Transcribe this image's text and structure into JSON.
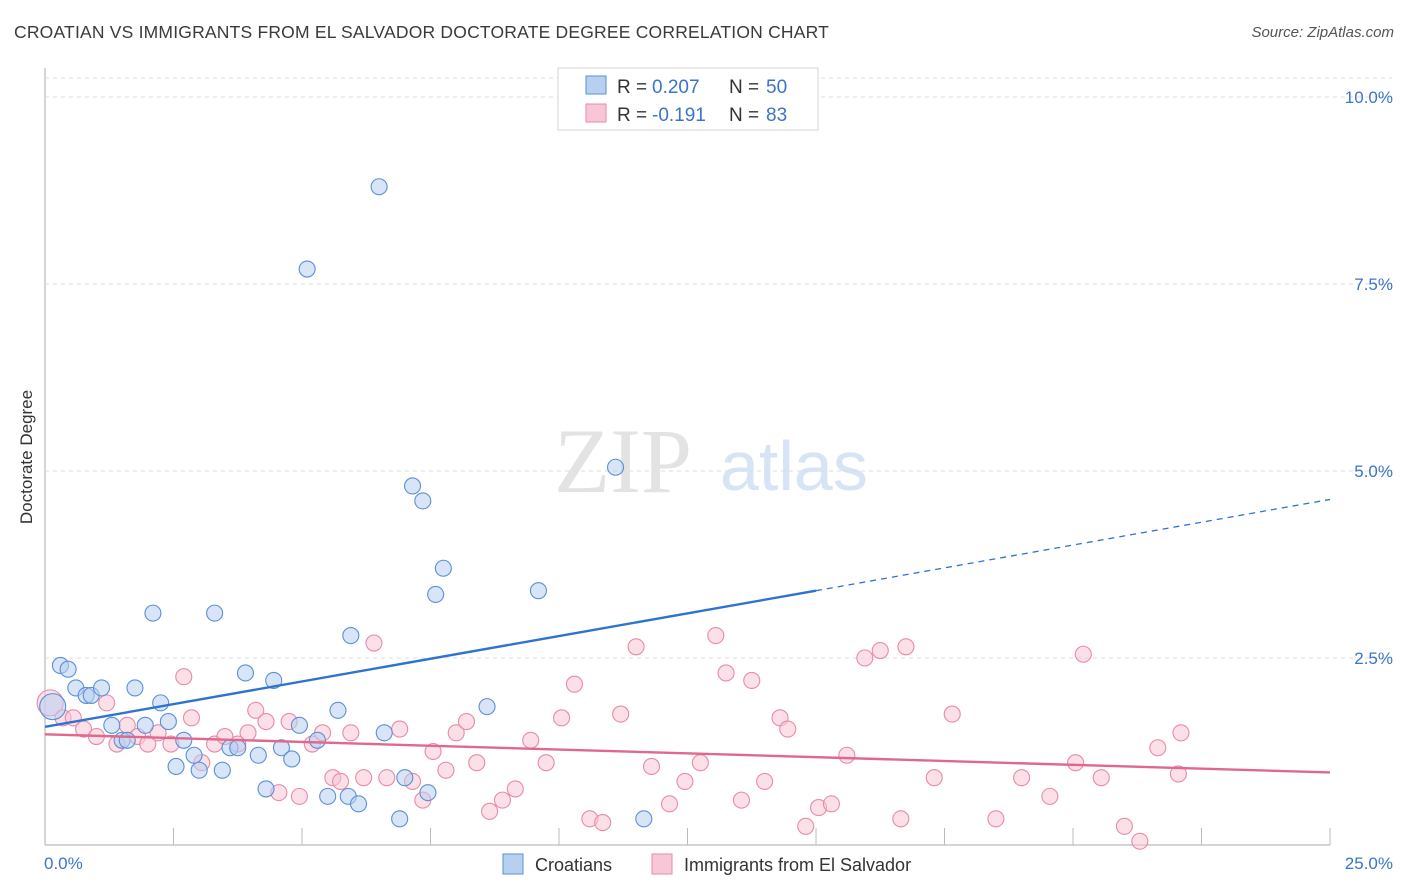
{
  "header": {
    "title": "CROATIAN VS IMMIGRANTS FROM EL SALVADOR DOCTORATE DEGREE CORRELATION CHART",
    "source": "Source: ZipAtlas.com"
  },
  "watermark": {
    "zip": "ZIP",
    "atlas": "atlas"
  },
  "legend_stats": [
    {
      "r_label": "R =",
      "r_value": "0.207",
      "n_label": "N =",
      "n_value": "50"
    },
    {
      "r_label": "R =",
      "r_value": "-0.191",
      "n_label": "N =",
      "n_value": "83"
    }
  ],
  "colors": {
    "blue_fill": "#b8d0f0",
    "blue_stroke": "#5b8fd6",
    "blue_line": "#2f73d0",
    "pink_fill": "#f8c6d6",
    "pink_stroke": "#e88aa8",
    "pink_line": "#e0688f",
    "value_text": "#3b74c9",
    "grid": "#dcdcdc"
  },
  "chart_data": {
    "type": "scatter",
    "title": "CROATIAN VS IMMIGRANTS FROM EL SALVADOR DOCTORATE DEGREE CORRELATION CHART",
    "xlabel": "",
    "ylabel": "Doctorate Degree",
    "xlim": [
      0,
      25
    ],
    "ylim": [
      0,
      10.5
    ],
    "x_tick_labels": [
      "0.0%",
      "25.0%"
    ],
    "y_ticks": [
      2.5,
      5.0,
      7.5,
      10.0
    ],
    "y_tick_labels": [
      "2.5%",
      "5.0%",
      "7.5%",
      "10.0%"
    ],
    "grid": true,
    "legend_position": "bottom",
    "series": [
      {
        "name": "Croatians",
        "r": 0.207,
        "n": 50,
        "trend": {
          "x_start": 0,
          "y_start": 1.58,
          "x_solid_end": 15,
          "y_solid_end": 3.4,
          "x_end": 25,
          "y_end": 4.62
        },
        "points": [
          [
            0.15,
            1.85
          ],
          [
            0.3,
            2.4
          ],
          [
            0.45,
            2.35
          ],
          [
            0.6,
            2.1
          ],
          [
            0.8,
            2.0
          ],
          [
            0.9,
            2.0
          ],
          [
            1.1,
            2.1
          ],
          [
            1.3,
            1.6
          ],
          [
            1.5,
            1.4
          ],
          [
            1.6,
            1.4
          ],
          [
            1.75,
            2.1
          ],
          [
            1.95,
            1.6
          ],
          [
            2.1,
            3.1
          ],
          [
            2.25,
            1.9
          ],
          [
            2.4,
            1.65
          ],
          [
            2.55,
            1.05
          ],
          [
            2.7,
            1.4
          ],
          [
            2.9,
            1.2
          ],
          [
            3.0,
            1.0
          ],
          [
            3.3,
            3.1
          ],
          [
            3.45,
            1.0
          ],
          [
            3.6,
            1.3
          ],
          [
            3.75,
            1.3
          ],
          [
            3.9,
            2.3
          ],
          [
            4.15,
            1.2
          ],
          [
            4.3,
            0.75
          ],
          [
            4.45,
            2.2
          ],
          [
            4.6,
            1.3
          ],
          [
            4.8,
            1.15
          ],
          [
            4.95,
            1.6
          ],
          [
            5.1,
            7.7
          ],
          [
            5.3,
            1.4
          ],
          [
            5.5,
            0.65
          ],
          [
            5.7,
            1.8
          ],
          [
            5.9,
            0.65
          ],
          [
            5.95,
            2.8
          ],
          [
            6.1,
            0.55
          ],
          [
            6.5,
            8.8
          ],
          [
            6.6,
            1.5
          ],
          [
            6.9,
            0.35
          ],
          [
            7.0,
            0.9
          ],
          [
            7.15,
            4.8
          ],
          [
            7.35,
            4.6
          ],
          [
            7.45,
            0.7
          ],
          [
            7.6,
            3.35
          ],
          [
            7.75,
            3.7
          ],
          [
            8.6,
            1.85
          ],
          [
            9.6,
            3.4
          ],
          [
            11.1,
            5.05
          ],
          [
            11.65,
            0.35
          ]
        ]
      },
      {
        "name": "Immigrants from El Salvador",
        "r": -0.191,
        "n": 83,
        "trend": {
          "x_start": 0,
          "y_start": 1.48,
          "x_end": 25,
          "y_end": 0.97
        },
        "points": [
          [
            0.1,
            1.9
          ],
          [
            0.35,
            1.7
          ],
          [
            0.55,
            1.7
          ],
          [
            0.75,
            1.55
          ],
          [
            1.0,
            1.45
          ],
          [
            1.2,
            1.9
          ],
          [
            1.4,
            1.35
          ],
          [
            1.6,
            1.6
          ],
          [
            1.8,
            1.45
          ],
          [
            2.0,
            1.35
          ],
          [
            2.2,
            1.5
          ],
          [
            2.45,
            1.35
          ],
          [
            2.7,
            2.25
          ],
          [
            2.85,
            1.7
          ],
          [
            3.05,
            1.1
          ],
          [
            3.3,
            1.35
          ],
          [
            3.5,
            1.45
          ],
          [
            3.75,
            1.35
          ],
          [
            3.95,
            1.5
          ],
          [
            4.1,
            1.8
          ],
          [
            4.3,
            1.65
          ],
          [
            4.55,
            0.7
          ],
          [
            4.75,
            1.65
          ],
          [
            4.95,
            0.65
          ],
          [
            5.2,
            1.35
          ],
          [
            5.4,
            1.5
          ],
          [
            5.6,
            0.9
          ],
          [
            5.75,
            0.85
          ],
          [
            5.95,
            1.5
          ],
          [
            6.2,
            0.9
          ],
          [
            6.4,
            2.7
          ],
          [
            6.65,
            0.9
          ],
          [
            6.9,
            1.55
          ],
          [
            7.15,
            0.85
          ],
          [
            7.35,
            0.6
          ],
          [
            7.55,
            1.25
          ],
          [
            7.8,
            1.0
          ],
          [
            8.0,
            1.5
          ],
          [
            8.2,
            1.65
          ],
          [
            8.4,
            1.1
          ],
          [
            8.65,
            0.45
          ],
          [
            8.9,
            0.6
          ],
          [
            9.15,
            0.75
          ],
          [
            9.45,
            1.4
          ],
          [
            9.75,
            1.1
          ],
          [
            10.05,
            1.7
          ],
          [
            10.3,
            2.15
          ],
          [
            10.6,
            0.35
          ],
          [
            10.85,
            0.3
          ],
          [
            11.2,
            1.75
          ],
          [
            11.5,
            2.65
          ],
          [
            11.8,
            1.05
          ],
          [
            12.15,
            0.55
          ],
          [
            12.45,
            0.85
          ],
          [
            12.75,
            1.1
          ],
          [
            13.05,
            2.8
          ],
          [
            13.25,
            2.3
          ],
          [
            13.55,
            0.6
          ],
          [
            13.75,
            2.2
          ],
          [
            14.0,
            0.85
          ],
          [
            14.3,
            1.7
          ],
          [
            14.45,
            1.55
          ],
          [
            14.8,
            0.25
          ],
          [
            15.05,
            0.5
          ],
          [
            15.3,
            0.55
          ],
          [
            15.6,
            1.2
          ],
          [
            15.95,
            2.5
          ],
          [
            16.25,
            2.6
          ],
          [
            16.65,
            0.35
          ],
          [
            16.75,
            2.65
          ],
          [
            17.3,
            0.9
          ],
          [
            17.65,
            1.75
          ],
          [
            18.5,
            0.35
          ],
          [
            19.0,
            0.9
          ],
          [
            19.55,
            0.65
          ],
          [
            20.05,
            1.1
          ],
          [
            20.2,
            2.55
          ],
          [
            20.55,
            0.9
          ],
          [
            21.0,
            0.25
          ],
          [
            21.3,
            0.05
          ],
          [
            21.65,
            1.3
          ],
          [
            22.05,
            0.95
          ],
          [
            22.1,
            1.5
          ]
        ]
      }
    ]
  }
}
